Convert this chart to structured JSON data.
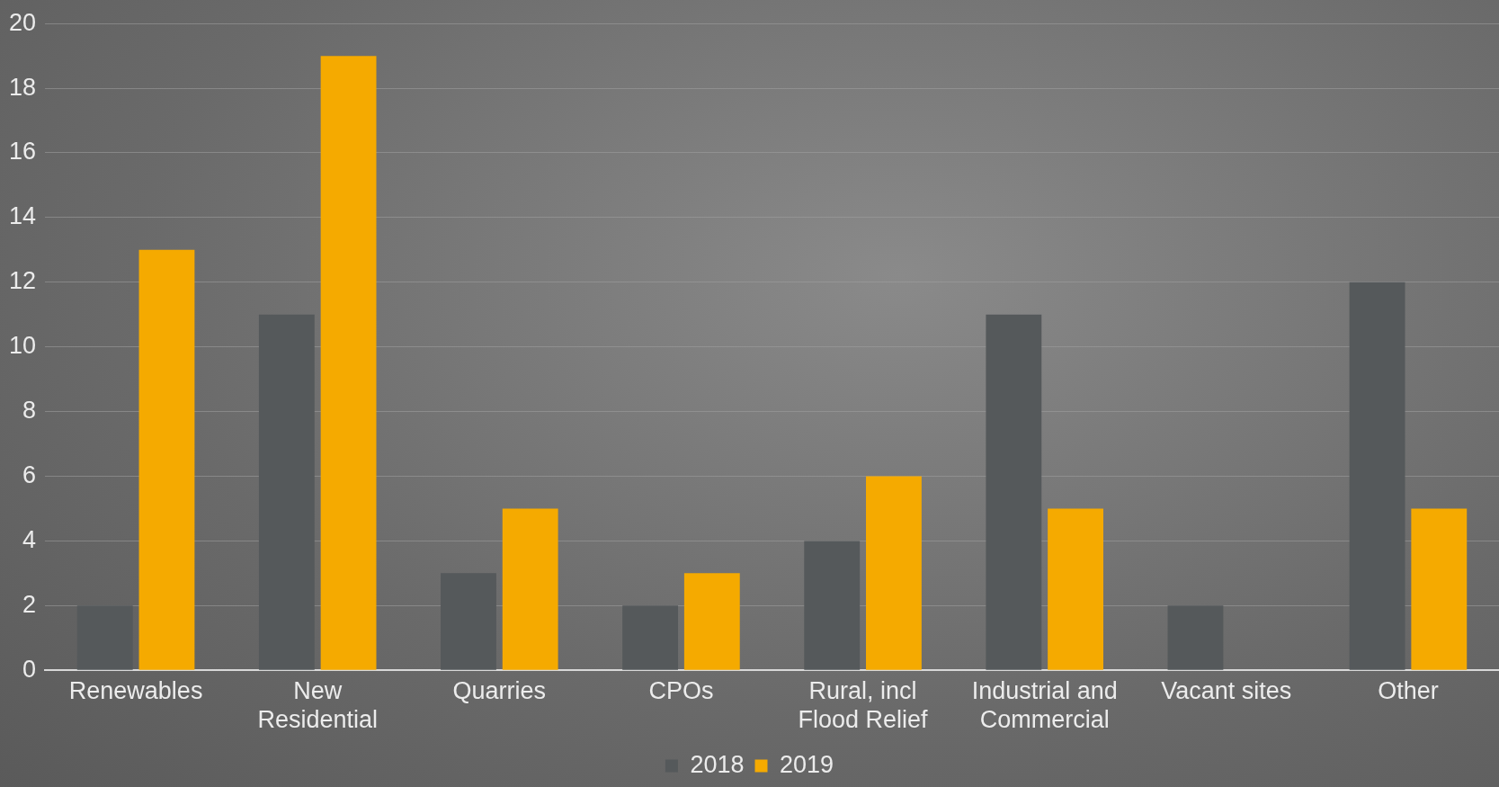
{
  "chart_data": {
    "type": "bar",
    "categories": [
      "Renewables",
      "New Residential",
      "Quarries",
      "CPOs",
      "Rural, incl Flood Relief",
      "Industrial and Commercial",
      "Vacant sites",
      "Other"
    ],
    "series": [
      {
        "name": "2018",
        "color": "#55595b",
        "values": [
          2,
          11,
          3,
          2,
          4,
          11,
          2,
          12
        ]
      },
      {
        "name": "2019",
        "color": "#f5aa00",
        "values": [
          13,
          19,
          5,
          3,
          6,
          5,
          0,
          5
        ]
      }
    ],
    "ylim": [
      0,
      20
    ],
    "yticks": [
      0,
      2,
      4,
      6,
      8,
      10,
      12,
      14,
      16,
      18,
      20
    ],
    "grid": "y",
    "legend": "bottom"
  }
}
